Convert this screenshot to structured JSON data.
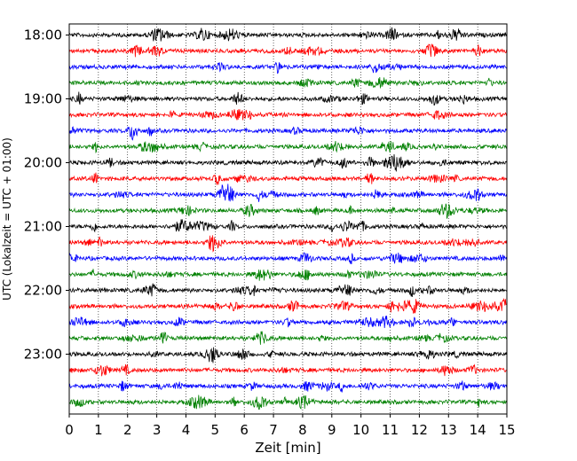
{
  "chart_data": {
    "type": "line",
    "title": "",
    "xlabel": "Zeit  [min]",
    "ylabel": "UTC (Lokalzeit = UTC + 01:00)",
    "xlim": [
      0,
      15
    ],
    "x_ticks": [
      "0",
      "1",
      "2",
      "3",
      "4",
      "5",
      "6",
      "7",
      "8",
      "9",
      "10",
      "11",
      "12",
      "13",
      "14",
      "15"
    ],
    "y_ticks": [
      "18:00",
      "19:00",
      "20:00",
      "21:00",
      "22:00",
      "23:00"
    ],
    "grid": "vertical-dotted",
    "trace_colors": [
      "#000000",
      "#ff0000",
      "#0000ff",
      "#008000"
    ],
    "rows": [
      {
        "time": "18:00",
        "color": "#000000"
      },
      {
        "time": "18:15",
        "color": "#ff0000"
      },
      {
        "time": "18:30",
        "color": "#0000ff"
      },
      {
        "time": "18:45",
        "color": "#008000"
      },
      {
        "time": "19:00",
        "color": "#000000"
      },
      {
        "time": "19:15",
        "color": "#ff0000"
      },
      {
        "time": "19:30",
        "color": "#0000ff"
      },
      {
        "time": "19:45",
        "color": "#008000"
      },
      {
        "time": "20:00",
        "color": "#000000"
      },
      {
        "time": "20:15",
        "color": "#ff0000"
      },
      {
        "time": "20:30",
        "color": "#0000ff"
      },
      {
        "time": "20:45",
        "color": "#008000"
      },
      {
        "time": "21:00",
        "color": "#000000"
      },
      {
        "time": "21:15",
        "color": "#ff0000"
      },
      {
        "time": "21:30",
        "color": "#0000ff"
      },
      {
        "time": "21:45",
        "color": "#008000"
      },
      {
        "time": "22:00",
        "color": "#000000"
      },
      {
        "time": "22:15",
        "color": "#ff0000"
      },
      {
        "time": "22:30",
        "color": "#0000ff"
      },
      {
        "time": "22:45",
        "color": "#008000"
      },
      {
        "time": "23:00",
        "color": "#000000"
      },
      {
        "time": "23:15",
        "color": "#ff0000"
      },
      {
        "time": "23:30",
        "color": "#0000ff"
      },
      {
        "time": "23:45",
        "color": "#008000"
      }
    ]
  }
}
